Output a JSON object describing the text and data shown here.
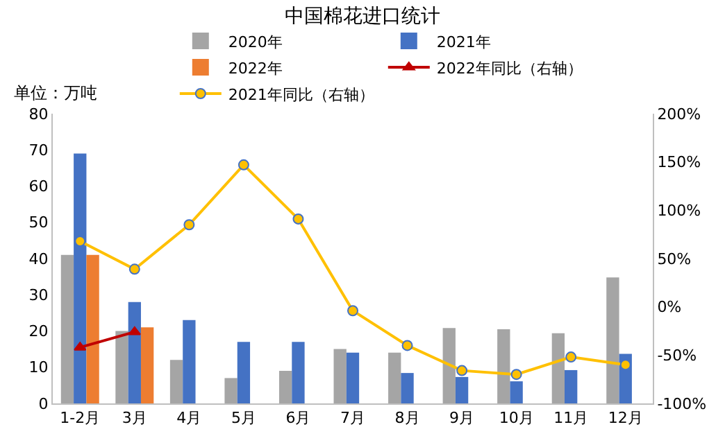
{
  "chart_data": {
    "type": "bar",
    "title": "中国棉花进口统计",
    "annotations": [
      "单位：万吨"
    ],
    "categories": [
      "1-2月",
      "3月",
      "4月",
      "5月",
      "6月",
      "7月",
      "8月",
      "9月",
      "10月",
      "11月",
      "12月"
    ],
    "series": [
      {
        "name": "2020年",
        "color": "#a5a5a5",
        "values": [
          41,
          20,
          12,
          7,
          9,
          15,
          14,
          20.8,
          20.5,
          19.4,
          34.8
        ]
      },
      {
        "name": "2021年",
        "color": "#4472c4",
        "values": [
          69,
          28,
          23,
          17,
          17,
          14,
          8.4,
          7.3,
          6.1,
          9.2,
          13.7
        ]
      },
      {
        "name": "2022年",
        "color": "#ed7d31",
        "values": [
          41,
          21,
          null,
          null,
          null,
          null,
          null,
          null,
          null,
          null,
          null
        ]
      },
      {
        "name": "2022年同比（右轴）",
        "type": "line",
        "axis": "y2",
        "marker": "triangle",
        "color": "#c00000",
        "values": [
          -42,
          -26,
          null,
          null,
          null,
          null,
          null,
          null,
          null,
          null,
          null
        ]
      },
      {
        "name": "2021年同比（右轴）",
        "type": "line",
        "axis": "y2",
        "marker": "circle",
        "color": "#ffc000",
        "values": [
          68,
          39,
          85,
          147,
          91,
          -4,
          -40,
          -66,
          -70,
          -52,
          -60
        ]
      }
    ],
    "ylim": [
      0,
      80
    ],
    "yticks": [
      0,
      10,
      20,
      30,
      40,
      50,
      60,
      70,
      80
    ],
    "y2lim": [
      -100,
      200
    ],
    "y2ticks": [
      {
        "value": -100,
        "label": "-100%"
      },
      {
        "value": -50,
        "label": "-50%"
      },
      {
        "value": 0,
        "label": "0%"
      },
      {
        "value": 50,
        "label": "50%"
      },
      {
        "value": 100,
        "label": "100%"
      },
      {
        "value": 150,
        "label": "150%"
      },
      {
        "value": 200,
        "label": "200%"
      }
    ],
    "grid": false,
    "legend": "top"
  }
}
